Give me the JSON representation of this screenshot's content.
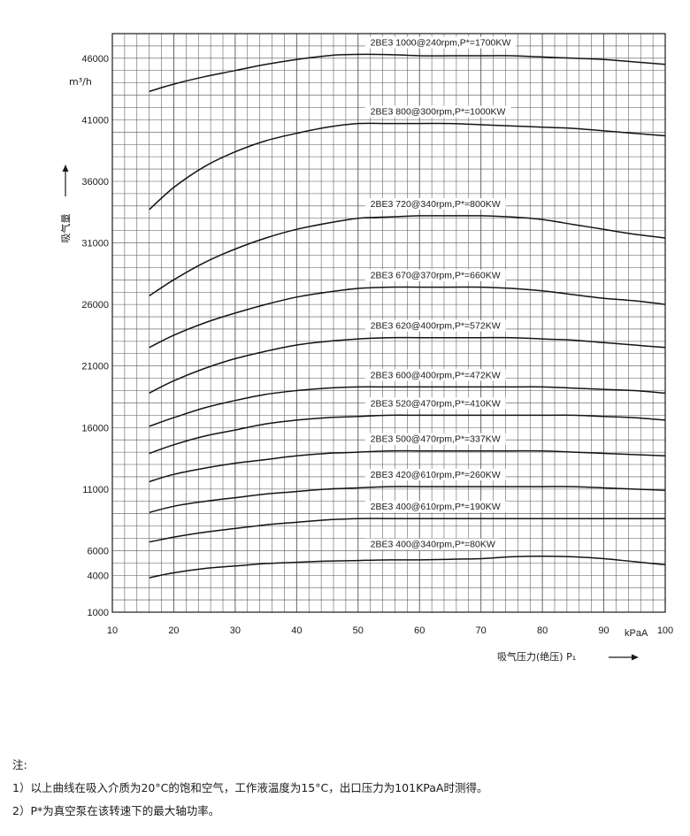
{
  "chart_data": {
    "type": "line",
    "xlabel": "吸气压力(绝压) P₁",
    "x_unit": "kPaA",
    "ylabel": "吸气量",
    "y_unit": "m³/h",
    "xlim": [
      10,
      100
    ],
    "ylim": [
      1000,
      48000
    ],
    "x_ticks": [
      10,
      20,
      30,
      40,
      50,
      60,
      70,
      80,
      90,
      100
    ],
    "y_ticks": [
      1000,
      4000,
      6000,
      11000,
      16000,
      21000,
      26000,
      31000,
      36000,
      41000,
      46000
    ],
    "grid": true,
    "series": [
      {
        "name": "2BE3 1000@240rpm,P*=1700KW",
        "x": [
          16,
          20,
          25,
          30,
          35,
          40,
          45,
          48,
          55,
          60,
          65,
          70,
          75,
          80,
          85,
          90,
          95,
          100
        ],
        "y": [
          43300,
          43900,
          44500,
          45000,
          45500,
          45900,
          46200,
          46300,
          46300,
          46200,
          46200,
          46200,
          46200,
          46100,
          46000,
          45900,
          45700,
          45500
        ]
      },
      {
        "name": "2BE3 800@300rpm,P*=1000KW",
        "x": [
          16,
          20,
          25,
          30,
          35,
          40,
          45,
          50,
          55,
          60,
          65,
          70,
          75,
          80,
          85,
          90,
          95,
          100
        ],
        "y": [
          33700,
          35500,
          37200,
          38400,
          39300,
          39900,
          40400,
          40700,
          40700,
          40700,
          40700,
          40600,
          40500,
          40400,
          40300,
          40100,
          39900,
          39700
        ]
      },
      {
        "name": "2BE3 720@340rpm,P*=800KW",
        "x": [
          16,
          20,
          25,
          30,
          35,
          40,
          45,
          50,
          55,
          60,
          65,
          70,
          75,
          80,
          85,
          90,
          95,
          100
        ],
        "y": [
          26700,
          28000,
          29400,
          30500,
          31400,
          32100,
          32600,
          33000,
          33100,
          33200,
          33200,
          33200,
          33100,
          32900,
          32500,
          32100,
          31700,
          31400
        ]
      },
      {
        "name": "2BE3 670@370rpm,P*=660KW",
        "x": [
          16,
          20,
          25,
          30,
          35,
          40,
          45,
          50,
          55,
          60,
          65,
          70,
          75,
          80,
          85,
          90,
          95,
          100
        ],
        "y": [
          22500,
          23500,
          24500,
          25300,
          26000,
          26600,
          27000,
          27300,
          27400,
          27400,
          27400,
          27400,
          27300,
          27100,
          26800,
          26500,
          26300,
          26000
        ]
      },
      {
        "name": "2BE3 620@400rpm,P*=572KW",
        "x": [
          16,
          20,
          25,
          30,
          35,
          40,
          45,
          50,
          55,
          60,
          65,
          70,
          75,
          80,
          85,
          90,
          95,
          100
        ],
        "y": [
          18800,
          19800,
          20800,
          21600,
          22200,
          22700,
          23000,
          23200,
          23300,
          23300,
          23300,
          23300,
          23300,
          23200,
          23100,
          22900,
          22700,
          22500
        ]
      },
      {
        "name": "2BE3 600@400rpm,P*=472KW",
        "x": [
          16,
          20,
          25,
          30,
          35,
          40,
          45,
          50,
          55,
          60,
          65,
          70,
          75,
          80,
          85,
          90,
          95,
          100
        ],
        "y": [
          16100,
          16800,
          17600,
          18200,
          18700,
          19000,
          19200,
          19300,
          19300,
          19300,
          19300,
          19300,
          19300,
          19300,
          19200,
          19100,
          19000,
          18800
        ]
      },
      {
        "name": "2BE3 520@470rpm,P*=410KW",
        "x": [
          16,
          20,
          25,
          30,
          35,
          40,
          45,
          50,
          55,
          60,
          65,
          70,
          75,
          80,
          85,
          90,
          95,
          100
        ],
        "y": [
          13900,
          14600,
          15300,
          15800,
          16300,
          16600,
          16800,
          16900,
          17000,
          17000,
          17000,
          17000,
          17000,
          17000,
          17000,
          16900,
          16800,
          16600
        ]
      },
      {
        "name": "2BE3 500@470rpm,P*=337KW",
        "x": [
          16,
          20,
          25,
          30,
          35,
          40,
          45,
          50,
          55,
          60,
          65,
          70,
          75,
          80,
          85,
          90,
          95,
          100
        ],
        "y": [
          11600,
          12200,
          12700,
          13100,
          13400,
          13700,
          13900,
          14000,
          14100,
          14100,
          14100,
          14100,
          14100,
          14100,
          14000,
          13900,
          13800,
          13700
        ]
      },
      {
        "name": "2BE3 420@610rpm,P*=260KW",
        "x": [
          16,
          20,
          25,
          30,
          35,
          40,
          45,
          50,
          55,
          60,
          65,
          70,
          75,
          80,
          85,
          90,
          95,
          100
        ],
        "y": [
          9100,
          9600,
          10000,
          10300,
          10600,
          10800,
          11000,
          11100,
          11200,
          11200,
          11200,
          11200,
          11200,
          11200,
          11200,
          11100,
          11000,
          10900
        ]
      },
      {
        "name": "2BE3 400@610rpm,P*=190KW",
        "x": [
          16,
          20,
          25,
          30,
          35,
          40,
          45,
          50,
          55,
          60,
          65,
          70,
          75,
          80,
          85,
          90,
          95,
          100
        ],
        "y": [
          6700,
          7100,
          7500,
          7800,
          8100,
          8300,
          8500,
          8600,
          8600,
          8600,
          8600,
          8600,
          8600,
          8600,
          8600,
          8600,
          8600,
          8600
        ]
      },
      {
        "name": "2BE3 400@340rpm,P*=80KW",
        "x": [
          16,
          20,
          25,
          30,
          35,
          40,
          45,
          50,
          55,
          60,
          65,
          70,
          75,
          80,
          85,
          90,
          95,
          100
        ],
        "y": [
          3800,
          4200,
          4550,
          4750,
          4950,
          5050,
          5150,
          5200,
          5250,
          5250,
          5300,
          5350,
          5500,
          5550,
          5500,
          5350,
          5100,
          4850
        ]
      }
    ]
  },
  "notes": {
    "heading": "注:",
    "line1": "1）以上曲线在吸入介质为20°C的饱和空气，工作液温度为15°C，出口压力为101KPaA时测得。",
    "line2": "2）P*为真空泵在该转速下的最大轴功率。"
  }
}
